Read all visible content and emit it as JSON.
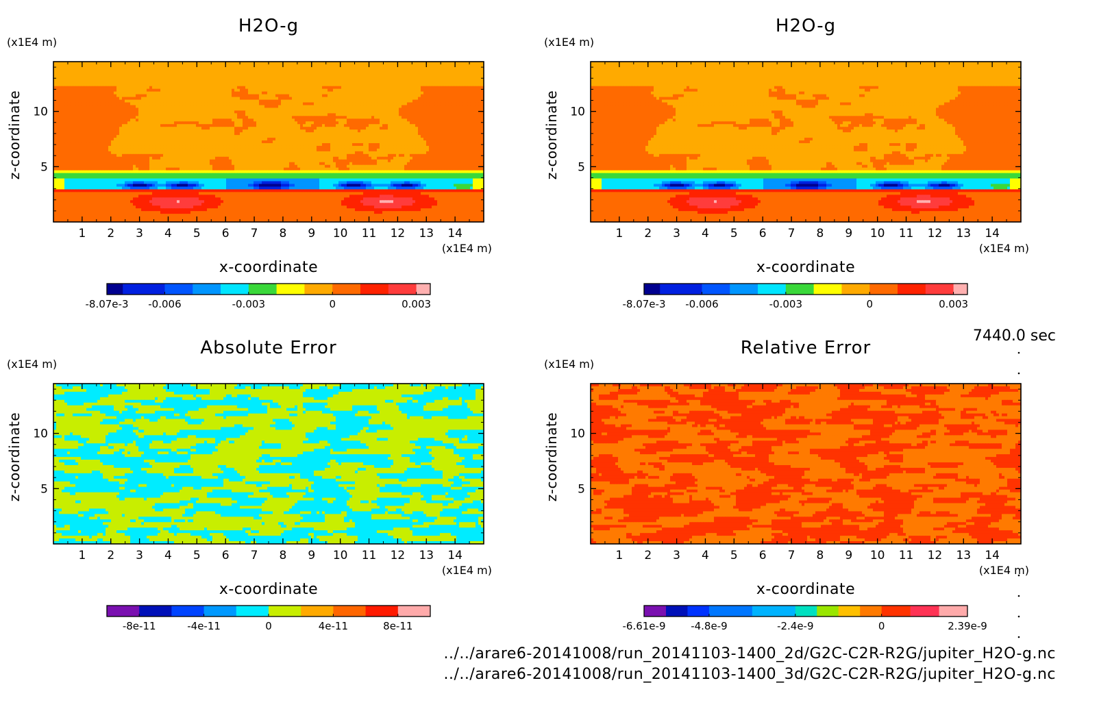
{
  "time_label": "7440.0 sec",
  "files": [
    "../../arare6-20141008/run_20141103-1400_2d/G2C-C2R-R2G/jupiter_H2O-g.nc",
    "../../arare6-20141008/run_20141103-1400_3d/G2C-C2R-R2G/jupiter_H2O-g.nc"
  ],
  "chart_data": [
    {
      "type": "heatmap",
      "title": "H2O-g",
      "xlabel": "x-coordinate",
      "ylabel": "z-coordinate",
      "x_unit": "(x1E4 m)",
      "y_unit": "(x1E4 m)",
      "xlim": [
        0,
        15
      ],
      "ylim": [
        0,
        14.5
      ],
      "x_ticks": [
        "1",
        "2",
        "3",
        "4",
        "5",
        "6",
        "7",
        "8",
        "9",
        "10",
        "11",
        "12",
        "13",
        "14"
      ],
      "y_ticks": [
        "5",
        "10"
      ],
      "field": "moisture",
      "levels": [
        {
          "range": [
            -0.00807,
            -0.0075
          ],
          "color": "#00008f"
        },
        {
          "range": [
            -0.0075,
            -0.006
          ],
          "color": "#0020e0"
        },
        {
          "range": [
            -0.006,
            -0.005
          ],
          "color": "#0055ff"
        },
        {
          "range": [
            -0.005,
            -0.004
          ],
          "color": "#0095ff"
        },
        {
          "range": [
            -0.004,
            -0.003
          ],
          "color": "#00e5ff"
        },
        {
          "range": [
            -0.003,
            -0.002
          ],
          "color": "#3ad83a"
        },
        {
          "range": [
            -0.002,
            -0.001
          ],
          "color": "#ffff00"
        },
        {
          "range": [
            -0.001,
            0.0
          ],
          "color": "#ffaa00"
        },
        {
          "range": [
            0.0,
            0.001
          ],
          "color": "#ff6a00"
        },
        {
          "range": [
            0.001,
            0.002
          ],
          "color": "#ff2200"
        },
        {
          "range": [
            0.002,
            0.003
          ],
          "color": "#ff3c3c"
        },
        {
          "range": [
            0.003,
            0.0035
          ],
          "color": "#ffb0b0"
        }
      ],
      "colorbar_labels": [
        "-8.07e-3",
        "-0.006",
        "-0.003",
        "0",
        "0.003"
      ],
      "colorbar_label_values": [
        -0.00807,
        -0.006,
        -0.003,
        0.0,
        0.003
      ]
    },
    {
      "type": "heatmap",
      "title": "H2O-g",
      "xlabel": "x-coordinate",
      "ylabel": "z-coordinate",
      "x_unit": "(x1E4 m)",
      "y_unit": "(x1E4 m)",
      "xlim": [
        0,
        15
      ],
      "ylim": [
        0,
        14.5
      ],
      "x_ticks": [
        "1",
        "2",
        "3",
        "4",
        "5",
        "6",
        "7",
        "8",
        "9",
        "10",
        "11",
        "12",
        "13",
        "14"
      ],
      "y_ticks": [
        "5",
        "10"
      ],
      "field": "moisture",
      "levels": [
        {
          "range": [
            -0.00807,
            -0.0075
          ],
          "color": "#00008f"
        },
        {
          "range": [
            -0.0075,
            -0.006
          ],
          "color": "#0020e0"
        },
        {
          "range": [
            -0.006,
            -0.005
          ],
          "color": "#0055ff"
        },
        {
          "range": [
            -0.005,
            -0.004
          ],
          "color": "#0095ff"
        },
        {
          "range": [
            -0.004,
            -0.003
          ],
          "color": "#00e5ff"
        },
        {
          "range": [
            -0.003,
            -0.002
          ],
          "color": "#3ad83a"
        },
        {
          "range": [
            -0.002,
            -0.001
          ],
          "color": "#ffff00"
        },
        {
          "range": [
            -0.001,
            0.0
          ],
          "color": "#ffaa00"
        },
        {
          "range": [
            0.0,
            0.001
          ],
          "color": "#ff6a00"
        },
        {
          "range": [
            0.001,
            0.002
          ],
          "color": "#ff2200"
        },
        {
          "range": [
            0.002,
            0.003
          ],
          "color": "#ff3c3c"
        },
        {
          "range": [
            0.003,
            0.0035
          ],
          "color": "#ffb0b0"
        }
      ],
      "colorbar_labels": [
        "-8.07e-3",
        "-0.006",
        "-0.003",
        "0",
        "0.003"
      ],
      "colorbar_label_values": [
        -0.00807,
        -0.006,
        -0.003,
        0.0,
        0.003
      ]
    },
    {
      "type": "heatmap",
      "title": "Absolute Error",
      "xlabel": "x-coordinate",
      "ylabel": "z-coordinate",
      "x_unit": "(x1E4 m)",
      "y_unit": "(x1E4 m)",
      "xlim": [
        0,
        15
      ],
      "ylim": [
        0,
        14.5
      ],
      "x_ticks": [
        "1",
        "2",
        "3",
        "4",
        "5",
        "6",
        "7",
        "8",
        "9",
        "10",
        "11",
        "12",
        "13",
        "14"
      ],
      "y_ticks": [
        "5",
        "10"
      ],
      "field": "noise2",
      "levels": [
        {
          "range": [
            -1e-10,
            -8e-11
          ],
          "color": "#7a10b0"
        },
        {
          "range": [
            -8e-11,
            -6e-11
          ],
          "color": "#0010b8"
        },
        {
          "range": [
            -6e-11,
            -4e-11
          ],
          "color": "#0044ff"
        },
        {
          "range": [
            -4e-11,
            -2e-11
          ],
          "color": "#0099ff"
        },
        {
          "range": [
            -2e-11,
            0.0
          ],
          "color": "#00ecff"
        },
        {
          "range": [
            0.0,
            2e-11
          ],
          "color": "#c8ee00"
        },
        {
          "range": [
            2e-11,
            4e-11
          ],
          "color": "#ffaa00"
        },
        {
          "range": [
            4e-11,
            6e-11
          ],
          "color": "#ff6600"
        },
        {
          "range": [
            6e-11,
            8e-11
          ],
          "color": "#ff1a00"
        },
        {
          "range": [
            8e-11,
            1e-10
          ],
          "color": "#ffaaaa"
        }
      ],
      "colorbar_labels": [
        "-8e-11",
        "-4e-11",
        "0",
        "4e-11",
        "8e-11"
      ],
      "colorbar_label_values": [
        -8e-11,
        -4e-11,
        0.0,
        4e-11,
        8e-11
      ]
    },
    {
      "type": "heatmap",
      "title": "Relative Error",
      "xlabel": "x-coordinate",
      "ylabel": "z-coordinate",
      "x_unit": "(x1E4 m)",
      "y_unit": "(x1E4 m)",
      "xlim": [
        0,
        15
      ],
      "ylim": [
        0,
        14.5
      ],
      "x_ticks": [
        "1",
        "2",
        "3",
        "4",
        "5",
        "6",
        "7",
        "8",
        "9",
        "10",
        "11",
        "12",
        "13",
        "14"
      ],
      "y_ticks": [
        "5",
        "10"
      ],
      "field": "noise2",
      "levels": [
        {
          "range": [
            -6.61e-09,
            -6e-09
          ],
          "color": "#7a10b0"
        },
        {
          "range": [
            -6e-09,
            -5.4e-09
          ],
          "color": "#0010b8"
        },
        {
          "range": [
            -5.4e-09,
            -4.8e-09
          ],
          "color": "#0033ff"
        },
        {
          "range": [
            -4.8e-09,
            -3.6e-09
          ],
          "color": "#0077ff"
        },
        {
          "range": [
            -3.6e-09,
            -2.4e-09
          ],
          "color": "#00b3ff"
        },
        {
          "range": [
            -2.4e-09,
            -1.8e-09
          ],
          "color": "#00e0c0"
        },
        {
          "range": [
            -1.8e-09,
            -1.2e-09
          ],
          "color": "#99e600"
        },
        {
          "range": [
            -1.2e-09,
            -6e-10
          ],
          "color": "#ffc000"
        },
        {
          "range": [
            -6e-10,
            0.0
          ],
          "color": "#ff7a00"
        },
        {
          "range": [
            0.0,
            8e-10
          ],
          "color": "#ff3300"
        },
        {
          "range": [
            8e-10,
            1.6e-09
          ],
          "color": "#ff3355"
        },
        {
          "range": [
            1.6e-09,
            2.39e-09
          ],
          "color": "#ffaaaa"
        }
      ],
      "colorbar_labels": [
        "-6.61e-9",
        "-4.8e-9",
        "-2.4e-9",
        "0",
        "2.39e-9"
      ],
      "colorbar_label_values": [
        -6.61e-09,
        -4.8e-09,
        -2.4e-09,
        0.0,
        2.39e-09
      ]
    }
  ]
}
